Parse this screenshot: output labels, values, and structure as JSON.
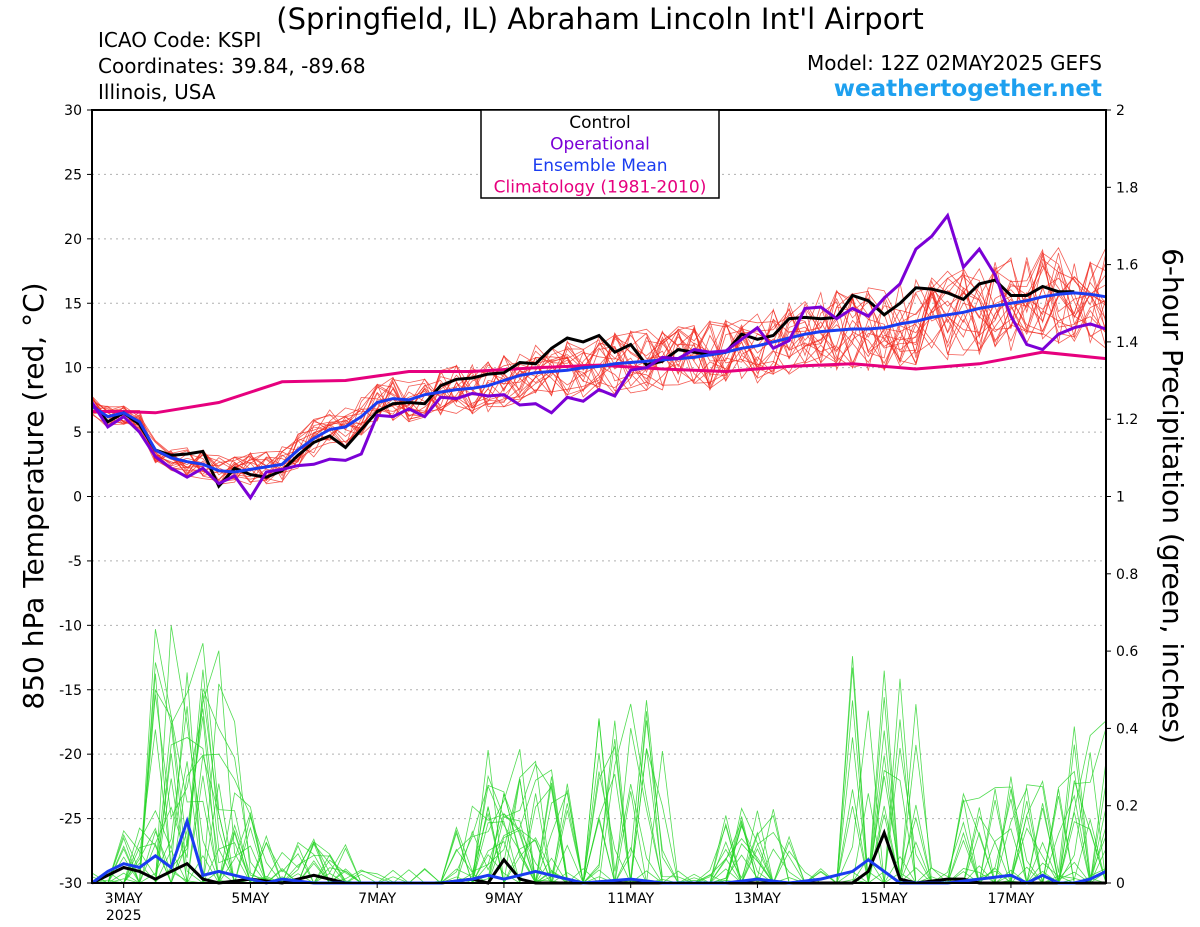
{
  "header": {
    "title": "(Springfield, IL) Abraham Lincoln Int'l Airport",
    "icao": "ICAO Code: KSPI",
    "coordinates": "Coordinates: 39.84, -89.68",
    "region": "Illinois, USA",
    "model": "Model: 12Z 02MAY2025 GEFS",
    "site": "weathertogether.net"
  },
  "colors": {
    "control": "#000000",
    "operational": "#7b00d6",
    "ensemble_mean": "#1a3cf0",
    "climatology": "#e6007e",
    "temp_members": "#f0281e",
    "precip_members": "#26d326"
  },
  "chart_data": {
    "type": "line",
    "x_unit": "hours since 12Z 02MAY2025",
    "xlim": [
      0,
      384
    ],
    "x_ticks": [
      {
        "x": 12,
        "label": "3MAY",
        "sub": "2025"
      },
      {
        "x": 60,
        "label": "5MAY",
        "sub": ""
      },
      {
        "x": 108,
        "label": "7MAY",
        "sub": ""
      },
      {
        "x": 156,
        "label": "9MAY",
        "sub": ""
      },
      {
        "x": 204,
        "label": "11MAY",
        "sub": ""
      },
      {
        "x": 252,
        "label": "13MAY",
        "sub": ""
      },
      {
        "x": 300,
        "label": "15MAY",
        "sub": ""
      },
      {
        "x": 348,
        "label": "17MAY",
        "sub": ""
      }
    ],
    "y_left": {
      "label": "850 hPa Temperature (red, °C)",
      "lim": [
        -30,
        30
      ],
      "ticks": [
        "30",
        "25",
        "20",
        "15",
        "10",
        "5",
        "0",
        "-5",
        "-10",
        "-15",
        "-20",
        "-25",
        "-30"
      ]
    },
    "y_right": {
      "label": "6-hour Precipitation (green, inches)",
      "lim": [
        0,
        2
      ],
      "ticks": [
        "2",
        "1.8",
        "1.6",
        "1.4",
        "1.2",
        "1",
        "0.8",
        "0.6",
        "0.4",
        "0.2",
        "0"
      ]
    },
    "grid": true,
    "legend": {
      "position": "top-center",
      "entries": [
        "Control",
        "Operational",
        "Ensemble Mean",
        "Climatology (1981-2010)"
      ]
    },
    "temperature": {
      "control": [
        [
          0,
          7.2
        ],
        [
          6,
          5.8
        ],
        [
          12,
          6.5
        ],
        [
          18,
          5.6
        ],
        [
          24,
          3.6
        ],
        [
          30,
          3.2
        ],
        [
          36,
          3.3
        ],
        [
          42,
          3.5
        ],
        [
          48,
          0.8
        ],
        [
          54,
          2.2
        ],
        [
          60,
          1.7
        ],
        [
          66,
          1.5
        ],
        [
          72,
          2.0
        ],
        [
          78,
          3.2
        ],
        [
          84,
          4.2
        ],
        [
          90,
          4.7
        ],
        [
          96,
          3.8
        ],
        [
          102,
          5.2
        ],
        [
          108,
          6.6
        ],
        [
          114,
          7.2
        ],
        [
          120,
          7.3
        ],
        [
          126,
          7.2
        ],
        [
          132,
          8.6
        ],
        [
          138,
          9.1
        ],
        [
          144,
          9.2
        ],
        [
          150,
          9.5
        ],
        [
          156,
          9.6
        ],
        [
          162,
          10.4
        ],
        [
          168,
          10.3
        ],
        [
          174,
          11.5
        ],
        [
          180,
          12.3
        ],
        [
          186,
          12.0
        ],
        [
          192,
          12.5
        ],
        [
          198,
          11.2
        ],
        [
          204,
          11.8
        ],
        [
          210,
          10.2
        ],
        [
          216,
          10.5
        ],
        [
          222,
          11.4
        ],
        [
          228,
          11.2
        ],
        [
          234,
          11.0
        ],
        [
          240,
          11.2
        ],
        [
          246,
          12.6
        ],
        [
          252,
          12.2
        ],
        [
          258,
          12.5
        ],
        [
          264,
          13.8
        ],
        [
          270,
          13.9
        ],
        [
          276,
          13.8
        ],
        [
          282,
          13.9
        ],
        [
          288,
          15.6
        ],
        [
          294,
          15.2
        ],
        [
          300,
          14.1
        ],
        [
          306,
          15.0
        ],
        [
          312,
          16.2
        ],
        [
          318,
          16.1
        ],
        [
          324,
          15.8
        ],
        [
          330,
          15.3
        ],
        [
          336,
          16.5
        ],
        [
          342,
          16.8
        ],
        [
          348,
          15.6
        ],
        [
          354,
          15.6
        ],
        [
          360,
          16.3
        ],
        [
          366,
          15.9
        ],
        [
          372,
          15.9
        ]
      ],
      "operational": [
        [
          0,
          7.3
        ],
        [
          6,
          5.4
        ],
        [
          12,
          6.2
        ],
        [
          18,
          5.0
        ],
        [
          24,
          3.1
        ],
        [
          30,
          2.2
        ],
        [
          36,
          1.5
        ],
        [
          42,
          2.2
        ],
        [
          48,
          1.0
        ],
        [
          54,
          1.6
        ],
        [
          60,
          -0.1
        ],
        [
          66,
          1.9
        ],
        [
          72,
          2.1
        ],
        [
          78,
          2.4
        ],
        [
          84,
          2.5
        ],
        [
          90,
          2.9
        ],
        [
          96,
          2.8
        ],
        [
          102,
          3.3
        ],
        [
          108,
          6.3
        ],
        [
          114,
          6.2
        ],
        [
          120,
          6.8
        ],
        [
          126,
          6.2
        ],
        [
          132,
          7.7
        ],
        [
          138,
          7.6
        ],
        [
          144,
          8.0
        ],
        [
          150,
          7.8
        ],
        [
          156,
          7.9
        ],
        [
          162,
          7.1
        ],
        [
          168,
          7.2
        ],
        [
          174,
          6.5
        ],
        [
          180,
          7.7
        ],
        [
          186,
          7.4
        ],
        [
          192,
          8.3
        ],
        [
          198,
          7.8
        ],
        [
          204,
          9.8
        ],
        [
          210,
          10.0
        ],
        [
          216,
          10.8
        ],
        [
          222,
          10.7
        ],
        [
          228,
          11.4
        ],
        [
          234,
          11.2
        ],
        [
          240,
          11.3
        ],
        [
          246,
          12.2
        ],
        [
          252,
          13.1
        ],
        [
          258,
          11.5
        ],
        [
          264,
          12.1
        ],
        [
          270,
          14.6
        ],
        [
          276,
          14.7
        ],
        [
          282,
          13.8
        ],
        [
          288,
          14.6
        ],
        [
          294,
          14.0
        ],
        [
          300,
          15.4
        ],
        [
          306,
          16.5
        ],
        [
          312,
          19.2
        ],
        [
          318,
          20.2
        ],
        [
          324,
          21.8
        ],
        [
          330,
          17.8
        ],
        [
          336,
          19.2
        ],
        [
          342,
          17.2
        ],
        [
          348,
          14.0
        ],
        [
          354,
          11.8
        ],
        [
          360,
          11.4
        ],
        [
          366,
          12.6
        ],
        [
          372,
          13.1
        ],
        [
          378,
          13.4
        ],
        [
          384,
          13.0
        ]
      ],
      "ensemble_mean": [
        [
          0,
          7.0
        ],
        [
          6,
          6.2
        ],
        [
          12,
          6.5
        ],
        [
          18,
          5.8
        ],
        [
          24,
          3.6
        ],
        [
          30,
          3.0
        ],
        [
          36,
          2.7
        ],
        [
          42,
          2.5
        ],
        [
          48,
          2.0
        ],
        [
          54,
          1.9
        ],
        [
          60,
          2.1
        ],
        [
          66,
          2.3
        ],
        [
          72,
          2.5
        ],
        [
          78,
          3.6
        ],
        [
          84,
          4.5
        ],
        [
          90,
          5.2
        ],
        [
          96,
          5.4
        ],
        [
          102,
          6.2
        ],
        [
          108,
          7.3
        ],
        [
          114,
          7.6
        ],
        [
          120,
          7.5
        ],
        [
          126,
          7.9
        ],
        [
          132,
          8.1
        ],
        [
          138,
          8.3
        ],
        [
          144,
          8.4
        ],
        [
          150,
          8.6
        ],
        [
          156,
          9.0
        ],
        [
          162,
          9.4
        ],
        [
          168,
          9.6
        ],
        [
          174,
          9.7
        ],
        [
          180,
          9.8
        ],
        [
          186,
          10.0
        ],
        [
          192,
          10.1
        ],
        [
          198,
          10.3
        ],
        [
          204,
          10.4
        ],
        [
          210,
          10.5
        ],
        [
          216,
          10.6
        ],
        [
          222,
          10.7
        ],
        [
          228,
          10.8
        ],
        [
          234,
          11.0
        ],
        [
          240,
          11.2
        ],
        [
          246,
          11.5
        ],
        [
          252,
          11.7
        ],
        [
          258,
          12.0
        ],
        [
          264,
          12.3
        ],
        [
          270,
          12.6
        ],
        [
          276,
          12.8
        ],
        [
          282,
          12.9
        ],
        [
          288,
          13.0
        ],
        [
          294,
          13.0
        ],
        [
          300,
          13.1
        ],
        [
          306,
          13.4
        ],
        [
          312,
          13.6
        ],
        [
          318,
          13.9
        ],
        [
          324,
          14.1
        ],
        [
          330,
          14.3
        ],
        [
          336,
          14.6
        ],
        [
          342,
          14.8
        ],
        [
          348,
          15.0
        ],
        [
          354,
          15.2
        ],
        [
          360,
          15.5
        ],
        [
          366,
          15.7
        ],
        [
          372,
          15.8
        ],
        [
          378,
          15.7
        ],
        [
          384,
          15.5
        ]
      ],
      "climatology": [
        [
          0,
          6.6
        ],
        [
          12,
          6.6
        ],
        [
          24,
          6.5
        ],
        [
          48,
          7.3
        ],
        [
          72,
          8.9
        ],
        [
          96,
          9.0
        ],
        [
          120,
          9.7
        ],
        [
          144,
          9.7
        ],
        [
          168,
          10.0
        ],
        [
          192,
          10.2
        ],
        [
          216,
          9.9
        ],
        [
          240,
          9.7
        ],
        [
          264,
          10.1
        ],
        [
          288,
          10.3
        ],
        [
          312,
          9.9
        ],
        [
          336,
          10.3
        ],
        [
          360,
          11.2
        ],
        [
          384,
          10.7
        ]
      ],
      "members_note": ""
    },
    "precipitation": {
      "control": [
        [
          0,
          0
        ],
        [
          12,
          0.04
        ],
        [
          18,
          0.03
        ],
        [
          24,
          0.01
        ],
        [
          30,
          0.03
        ],
        [
          36,
          0.05
        ],
        [
          42,
          0.01
        ],
        [
          48,
          0
        ],
        [
          60,
          0.01
        ],
        [
          72,
          0
        ],
        [
          84,
          0.02
        ],
        [
          96,
          0
        ],
        [
          132,
          0
        ],
        [
          144,
          0.01
        ],
        [
          150,
          0
        ],
        [
          156,
          0.06
        ],
        [
          162,
          0.01
        ],
        [
          168,
          0
        ],
        [
          288,
          0
        ],
        [
          294,
          0.03
        ],
        [
          300,
          0.13
        ],
        [
          306,
          0.01
        ],
        [
          312,
          0
        ],
        [
          324,
          0.01
        ],
        [
          330,
          0.01
        ],
        [
          336,
          0
        ],
        [
          384,
          0
        ]
      ],
      "ensemble_mean": [
        [
          0,
          0
        ],
        [
          6,
          0.03
        ],
        [
          12,
          0.05
        ],
        [
          18,
          0.04
        ],
        [
          24,
          0.07
        ],
        [
          30,
          0.04
        ],
        [
          36,
          0.16
        ],
        [
          42,
          0.02
        ],
        [
          48,
          0.03
        ],
        [
          54,
          0.02
        ],
        [
          60,
          0.01
        ],
        [
          66,
          0
        ],
        [
          72,
          0.01
        ],
        [
          84,
          0
        ],
        [
          96,
          0
        ],
        [
          132,
          0
        ],
        [
          144,
          0.01
        ],
        [
          150,
          0.02
        ],
        [
          156,
          0.01
        ],
        [
          162,
          0.02
        ],
        [
          168,
          0.03
        ],
        [
          174,
          0.02
        ],
        [
          180,
          0.01
        ],
        [
          186,
          0
        ],
        [
          204,
          0.01
        ],
        [
          216,
          0
        ],
        [
          240,
          0
        ],
        [
          252,
          0.01
        ],
        [
          264,
          0
        ],
        [
          276,
          0.01
        ],
        [
          288,
          0.03
        ],
        [
          294,
          0.06
        ],
        [
          300,
          0.03
        ],
        [
          306,
          0
        ],
        [
          324,
          0
        ],
        [
          336,
          0.01
        ],
        [
          348,
          0.02
        ],
        [
          354,
          0
        ],
        [
          360,
          0.02
        ],
        [
          366,
          0
        ],
        [
          372,
          0
        ],
        [
          378,
          0.01
        ],
        [
          384,
          0.03
        ]
      ]
    }
  }
}
